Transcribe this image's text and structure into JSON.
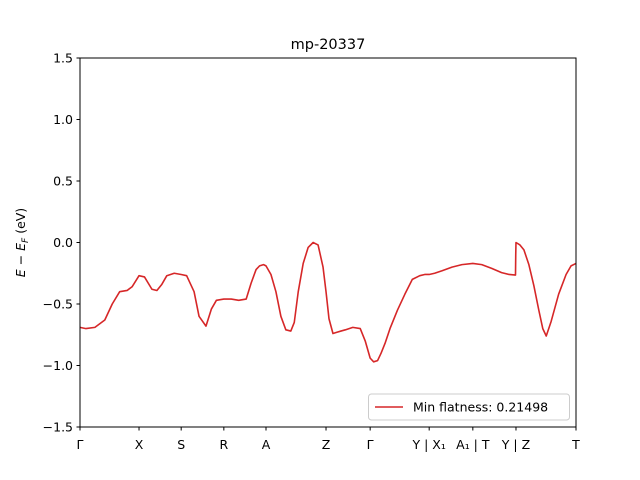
{
  "chart_data": {
    "type": "line",
    "title": "mp-20337",
    "xlabel": "",
    "ylabel": "E − E_F (eV)",
    "ylabel_parts": [
      "E",
      " − ",
      "E",
      "F",
      " (eV)"
    ],
    "ylim": [
      -1.5,
      1.5
    ],
    "yticks": [
      {
        "value": 1.5,
        "label": "1.5"
      },
      {
        "value": 1.0,
        "label": "1.0"
      },
      {
        "value": 0.5,
        "label": "0.5"
      },
      {
        "value": 0.0,
        "label": "0.0"
      },
      {
        "value": -0.5,
        "label": "−0.5"
      },
      {
        "value": -1.0,
        "label": "−1.0"
      },
      {
        "value": -1.5,
        "label": "−1.5"
      }
    ],
    "xlim": [
      0,
      1
    ],
    "xticks": [
      {
        "pos": 0.0,
        "label": "Γ"
      },
      {
        "pos": 0.119,
        "label": "X"
      },
      {
        "pos": 0.204,
        "label": "S"
      },
      {
        "pos": 0.29,
        "label": "R"
      },
      {
        "pos": 0.375,
        "label": "A"
      },
      {
        "pos": 0.496,
        "label": "Z"
      },
      {
        "pos": 0.585,
        "label": "Γ"
      },
      {
        "pos": 0.704,
        "label": "Y | X₁"
      },
      {
        "pos": 0.792,
        "label": "A₁ | T"
      },
      {
        "pos": 0.879,
        "label": "Y | Z"
      },
      {
        "pos": 1.0,
        "label": "T"
      }
    ],
    "grid": false,
    "legend_position": "lower-right",
    "color": "#d62728",
    "series": [
      {
        "name": "Min flatness: 0.21498",
        "x": [
          0.0,
          0.012,
          0.03,
          0.05,
          0.065,
          0.08,
          0.095,
          0.105,
          0.119,
          0.13,
          0.145,
          0.155,
          0.165,
          0.175,
          0.19,
          0.204,
          0.215,
          0.23,
          0.24,
          0.254,
          0.265,
          0.275,
          0.29,
          0.305,
          0.32,
          0.335,
          0.345,
          0.355,
          0.362,
          0.37,
          0.375,
          0.385,
          0.395,
          0.405,
          0.415,
          0.425,
          0.432,
          0.44,
          0.45,
          0.46,
          0.47,
          0.48,
          0.49,
          0.496,
          0.502,
          0.51,
          0.518,
          0.526,
          0.535,
          0.55,
          0.565,
          0.575,
          0.585,
          0.592,
          0.6,
          0.607,
          0.615,
          0.625,
          0.64,
          0.655,
          0.67,
          0.685,
          0.695,
          0.704,
          0.715,
          0.73,
          0.75,
          0.77,
          0.792,
          0.81,
          0.83,
          0.85,
          0.865,
          0.878,
          0.8785,
          0.879,
          0.887,
          0.895,
          0.905,
          0.915,
          0.925,
          0.933,
          0.94,
          0.95,
          0.965,
          0.98,
          0.99,
          1.0
        ],
        "y": [
          -0.69,
          -0.7,
          -0.69,
          -0.63,
          -0.5,
          -0.4,
          -0.39,
          -0.36,
          -0.27,
          -0.28,
          -0.38,
          -0.39,
          -0.34,
          -0.27,
          -0.25,
          -0.26,
          -0.27,
          -0.4,
          -0.6,
          -0.68,
          -0.54,
          -0.47,
          -0.46,
          -0.46,
          -0.47,
          -0.46,
          -0.33,
          -0.22,
          -0.19,
          -0.18,
          -0.19,
          -0.26,
          -0.4,
          -0.6,
          -0.71,
          -0.72,
          -0.65,
          -0.4,
          -0.17,
          -0.04,
          0.0,
          -0.02,
          -0.2,
          -0.4,
          -0.62,
          -0.74,
          -0.73,
          -0.72,
          -0.71,
          -0.69,
          -0.7,
          -0.8,
          -0.94,
          -0.97,
          -0.96,
          -0.9,
          -0.82,
          -0.7,
          -0.55,
          -0.42,
          -0.3,
          -0.27,
          -0.26,
          -0.26,
          -0.25,
          -0.23,
          -0.2,
          -0.18,
          -0.17,
          -0.18,
          -0.21,
          -0.245,
          -0.26,
          -0.265,
          -0.1,
          0.0,
          -0.02,
          -0.06,
          -0.18,
          -0.35,
          -0.55,
          -0.7,
          -0.76,
          -0.64,
          -0.42,
          -0.26,
          -0.19,
          -0.17
        ]
      }
    ]
  }
}
